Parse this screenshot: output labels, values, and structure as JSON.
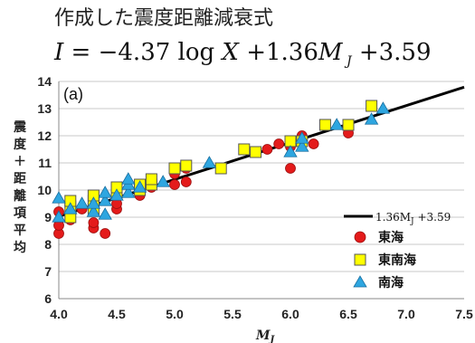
{
  "title_jp": "作成した震度距離減衰式",
  "formula": "I = −4.37 log X +1.36M J +3.59",
  "chart_data": {
    "type": "scatter",
    "panel_label": "(a)",
    "xlabel": "M",
    "xlabel_sub": "J",
    "ylabel_chars": [
      "震",
      "度",
      "＋",
      "距",
      "離",
      "項",
      "平",
      "均"
    ],
    "xlim": [
      4.0,
      7.5
    ],
    "ylim": [
      6,
      14
    ],
    "xticks": [
      "4.0",
      "4.5",
      "5.0",
      "5.5",
      "6.0",
      "6.5",
      "7.0",
      "7.5"
    ],
    "yticks": [
      "6",
      "7",
      "8",
      "9",
      "10",
      "11",
      "12",
      "13",
      "14"
    ],
    "fit_line": {
      "label": "1.36M",
      "label_sub": "J",
      "label_suffix": " +3.59",
      "slope": 1.36,
      "intercept": 3.59,
      "color": "#000000"
    },
    "series": [
      {
        "name": "東海",
        "marker": "circle",
        "color": "#e41b1b",
        "points": [
          [
            4.0,
            8.4
          ],
          [
            4.0,
            8.7
          ],
          [
            4.0,
            9.2
          ],
          [
            4.1,
            8.9
          ],
          [
            4.1,
            9.1
          ],
          [
            4.2,
            9.3
          ],
          [
            4.3,
            8.6
          ],
          [
            4.3,
            8.8
          ],
          [
            4.3,
            9.4
          ],
          [
            4.4,
            8.4
          ],
          [
            4.5,
            9.3
          ],
          [
            4.5,
            9.5
          ],
          [
            4.7,
            9.8
          ],
          [
            4.8,
            10.1
          ],
          [
            5.0,
            10.2
          ],
          [
            5.0,
            10.6
          ],
          [
            5.1,
            10.3
          ],
          [
            5.1,
            10.8
          ],
          [
            5.8,
            11.5
          ],
          [
            5.9,
            11.7
          ],
          [
            6.0,
            10.8
          ],
          [
            6.0,
            11.6
          ],
          [
            6.1,
            12.0
          ],
          [
            6.2,
            11.7
          ],
          [
            6.5,
            12.1
          ]
        ]
      },
      {
        "name": "東南海",
        "marker": "square",
        "color": "#ffff00",
        "points": [
          [
            4.1,
            9.0
          ],
          [
            4.1,
            9.4
          ],
          [
            4.1,
            9.6
          ],
          [
            4.3,
            9.3
          ],
          [
            4.3,
            9.6
          ],
          [
            4.3,
            9.8
          ],
          [
            4.5,
            9.9
          ],
          [
            4.5,
            10.1
          ],
          [
            4.7,
            10.0
          ],
          [
            4.7,
            10.2
          ],
          [
            4.8,
            10.2
          ],
          [
            4.8,
            10.4
          ],
          [
            5.0,
            10.8
          ],
          [
            5.1,
            10.9
          ],
          [
            5.4,
            10.8
          ],
          [
            5.6,
            11.5
          ],
          [
            5.7,
            11.4
          ],
          [
            6.0,
            11.8
          ],
          [
            6.1,
            11.8
          ],
          [
            6.3,
            12.4
          ],
          [
            6.5,
            12.4
          ],
          [
            6.7,
            13.1
          ]
        ]
      },
      {
        "name": "南海",
        "marker": "triangle",
        "color": "#2ea6e0",
        "points": [
          [
            4.0,
            9.0
          ],
          [
            4.0,
            9.7
          ],
          [
            4.1,
            9.3
          ],
          [
            4.2,
            9.5
          ],
          [
            4.3,
            9.2
          ],
          [
            4.3,
            9.5
          ],
          [
            4.4,
            9.1
          ],
          [
            4.4,
            9.6
          ],
          [
            4.4,
            9.9
          ],
          [
            4.5,
            9.8
          ],
          [
            4.6,
            9.9
          ],
          [
            4.6,
            10.2
          ],
          [
            4.6,
            10.4
          ],
          [
            4.7,
            10.1
          ],
          [
            4.9,
            10.3
          ],
          [
            5.3,
            11.0
          ],
          [
            6.0,
            11.4
          ],
          [
            6.1,
            11.6
          ],
          [
            6.1,
            11.9
          ],
          [
            6.4,
            12.4
          ],
          [
            6.7,
            12.6
          ],
          [
            6.8,
            13.0
          ]
        ]
      }
    ]
  }
}
